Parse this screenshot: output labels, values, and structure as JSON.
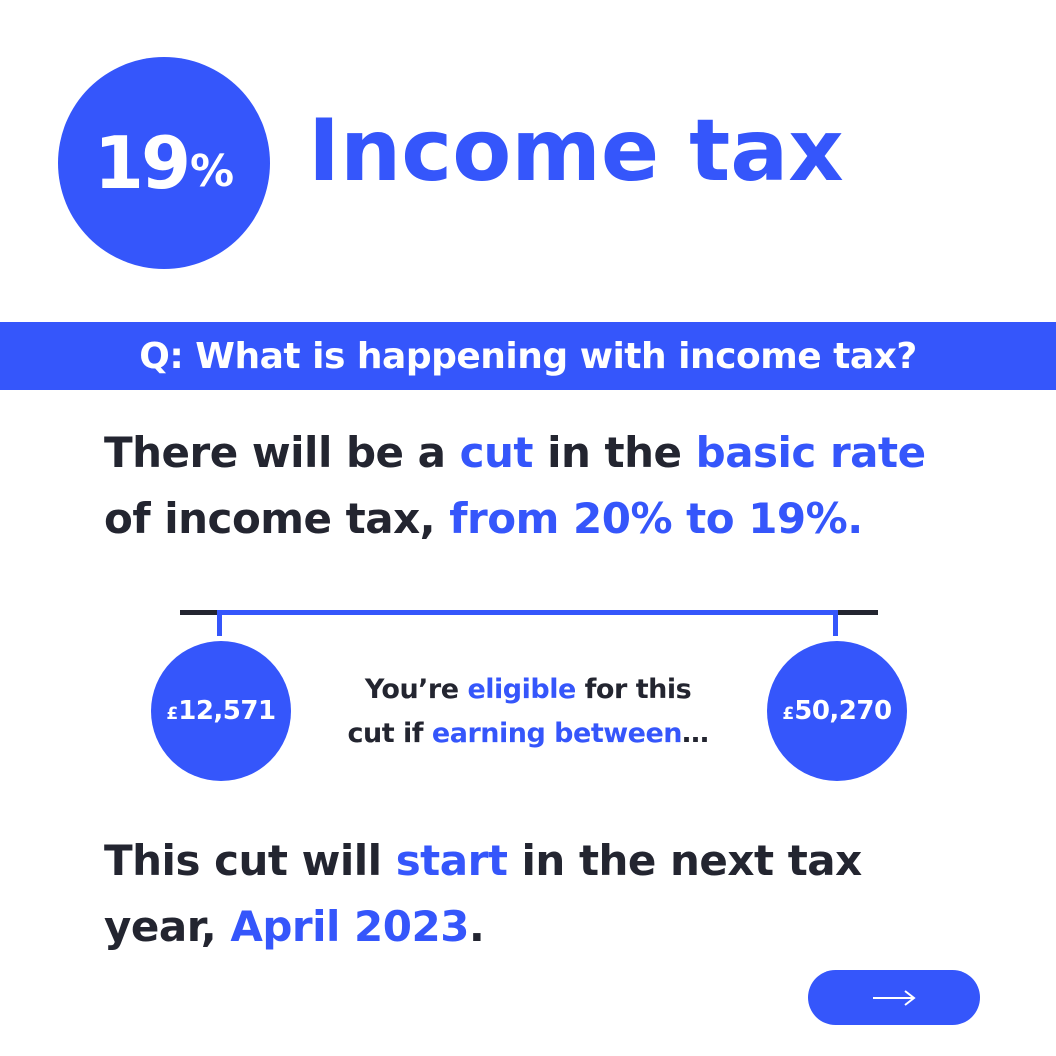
{
  "badge": {
    "number": "19",
    "percent_sign": "%"
  },
  "title": "Income tax",
  "question": "Q: What is happening with income tax?",
  "paragraph1": {
    "line1": {
      "a": "There will be a ",
      "b": "cut",
      "c": " in the ",
      "d": "basic rate"
    },
    "line2": {
      "a": "of income tax, ",
      "b": "from 20% to 19%."
    }
  },
  "range": {
    "lower": {
      "currency": "£",
      "amount": "12,571"
    },
    "upper": {
      "currency": "£",
      "amount": "50,270"
    },
    "caption": {
      "line1": {
        "a": "You’re ",
        "b": "eligible",
        "c": " for this"
      },
      "line2": {
        "a": "cut if ",
        "b": "earning between",
        "c": "…"
      }
    }
  },
  "paragraph2": {
    "line1": {
      "a": "This cut will ",
      "b": "start",
      "c": " in the next tax"
    },
    "line2": {
      "a": "year, ",
      "b": "April 2023",
      "c": "."
    }
  },
  "next_button": {
    "icon": "arrow-right-icon"
  },
  "colors": {
    "accent": "#3556fb",
    "text": "#232530",
    "background": "#ffffff"
  }
}
